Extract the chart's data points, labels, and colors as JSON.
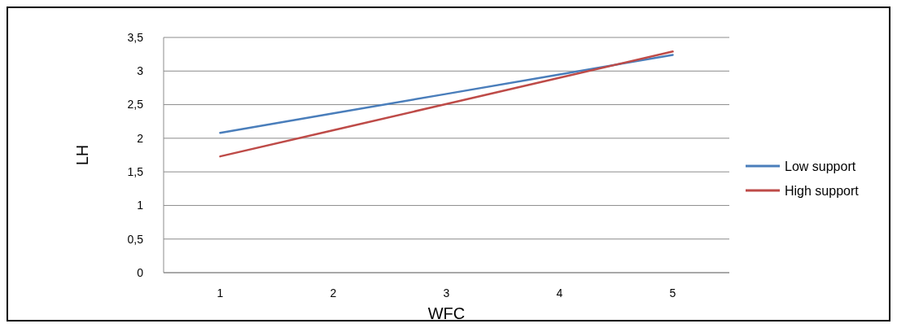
{
  "chart_data": {
    "type": "line",
    "xlabel": "WFC",
    "ylabel": "LH",
    "categories": [
      "1",
      "2",
      "3",
      "4",
      "5"
    ],
    "series": [
      {
        "name": "Low support",
        "color": "#4a7ebb",
        "values": [
          2.08,
          2.37,
          2.66,
          2.95,
          3.24
        ]
      },
      {
        "name": "High support",
        "color": "#be4b48",
        "values": [
          1.73,
          2.12,
          2.51,
          2.9,
          3.29
        ]
      }
    ],
    "ylim": [
      0,
      3.5
    ],
    "yticks": [
      0,
      {
        "value": 0.5,
        "label": "0,5"
      },
      1,
      {
        "value": 1.5,
        "label": "1,5"
      },
      2,
      {
        "value": 2.5,
        "label": "2,5"
      },
      3,
      {
        "value": 3.5,
        "label": "3,5"
      }
    ],
    "grid": "y",
    "legend": "right",
    "marker": "none",
    "line_style": "solid"
  }
}
